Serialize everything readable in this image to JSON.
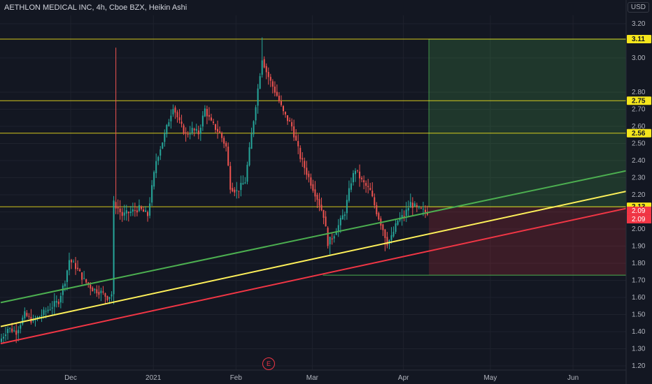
{
  "header": {
    "title": "AETHLON MEDICAL INC, 4h, Cboe BZX, Heikin Ashi",
    "currency": "USD"
  },
  "earnings_marker": "E",
  "chart_data": {
    "type": "candlestick",
    "title": "AETHLON MEDICAL INC, 4h, Cboe BZX, Heikin Ashi",
    "ylim": [
      1.15,
      3.25
    ],
    "y_ticks": [
      "3.20",
      "3.00",
      "2.80",
      "2.70",
      "2.60",
      "2.50",
      "2.40",
      "2.30",
      "2.20",
      "2.10",
      "2.00",
      "1.90",
      "1.80",
      "1.70",
      "1.60",
      "1.50",
      "1.40",
      "1.30",
      "1.20"
    ],
    "x_ticks": [
      {
        "label": "Dec",
        "idx": 33
      },
      {
        "label": "2021",
        "idx": 72
      },
      {
        "label": "Feb",
        "idx": 111
      },
      {
        "label": "Mar",
        "idx": 147
      },
      {
        "label": "Apr",
        "idx": 190
      },
      {
        "label": "May",
        "idx": 231
      },
      {
        "label": "Jun",
        "idx": 270
      }
    ],
    "n_slots": 295,
    "waypoints": [
      [
        0,
        1.34
      ],
      [
        4,
        1.42
      ],
      [
        8,
        1.4
      ],
      [
        12,
        1.5
      ],
      [
        16,
        1.46
      ],
      [
        22,
        1.52
      ],
      [
        28,
        1.58
      ],
      [
        31,
        1.7
      ],
      [
        33,
        1.82
      ],
      [
        36,
        1.78
      ],
      [
        40,
        1.7
      ],
      [
        44,
        1.65
      ],
      [
        48,
        1.63
      ],
      [
        51,
        1.6
      ],
      [
        53,
        1.62
      ],
      [
        54,
        2.15
      ],
      [
        56,
        2.12
      ],
      [
        58,
        2.08
      ],
      [
        62,
        2.1
      ],
      [
        66,
        2.12
      ],
      [
        70,
        2.08
      ],
      [
        74,
        2.4
      ],
      [
        78,
        2.55
      ],
      [
        82,
        2.72
      ],
      [
        85,
        2.62
      ],
      [
        88,
        2.55
      ],
      [
        91,
        2.58
      ],
      [
        94,
        2.56
      ],
      [
        97,
        2.7
      ],
      [
        100,
        2.62
      ],
      [
        104,
        2.56
      ],
      [
        107,
        2.48
      ],
      [
        109,
        2.25
      ],
      [
        112,
        2.22
      ],
      [
        116,
        2.28
      ],
      [
        119,
        2.55
      ],
      [
        122,
        2.82
      ],
      [
        124,
        3.0
      ],
      [
        126,
        2.92
      ],
      [
        128,
        2.86
      ],
      [
        131,
        2.78
      ],
      [
        134,
        2.68
      ],
      [
        138,
        2.6
      ],
      [
        142,
        2.42
      ],
      [
        146,
        2.3
      ],
      [
        150,
        2.18
      ],
      [
        153,
        2.08
      ],
      [
        155,
        1.92
      ],
      [
        157,
        1.95
      ],
      [
        160,
        2.02
      ],
      [
        163,
        2.1
      ],
      [
        166,
        2.28
      ],
      [
        168,
        2.35
      ],
      [
        171,
        2.28
      ],
      [
        175,
        2.22
      ],
      [
        178,
        2.1
      ],
      [
        181,
        2.0
      ],
      [
        183,
        1.92
      ],
      [
        185,
        1.95
      ],
      [
        188,
        2.05
      ],
      [
        191,
        2.08
      ],
      [
        194,
        2.15
      ],
      [
        197,
        2.12
      ],
      [
        201,
        2.1
      ]
    ],
    "levels": [
      {
        "name": "3.11",
        "value": 3.11,
        "color": "#f5e61c"
      },
      {
        "name": "2.75",
        "value": 2.75,
        "color": "#f5e61c"
      },
      {
        "name": "2.56",
        "value": 2.56,
        "color": "#f5e61c"
      },
      {
        "name": "2.13",
        "value": 2.13,
        "color": "#f5e61c"
      }
    ],
    "price_labels": [
      {
        "text": "2.09",
        "color": "#f23645"
      },
      {
        "text": "2.09",
        "color": "#f23645"
      }
    ],
    "position": {
      "entry": 2.13,
      "target": 3.11,
      "stop": 1.73,
      "start_idx": 202
    },
    "trendlines": [
      {
        "color": "#4caf50",
        "from": [
          0,
          1.57
        ],
        "to": [
          295,
          2.34
        ]
      },
      {
        "color": "#fff15a",
        "from": [
          0,
          1.43
        ],
        "to": [
          295,
          2.22
        ]
      },
      {
        "color": "#f23645",
        "from": [
          0,
          1.33
        ],
        "to": [
          295,
          2.12
        ]
      }
    ],
    "colors": {
      "up": "#26a69a",
      "down": "#ef5350",
      "bg": "#131722",
      "grid": "#1e222d"
    }
  }
}
